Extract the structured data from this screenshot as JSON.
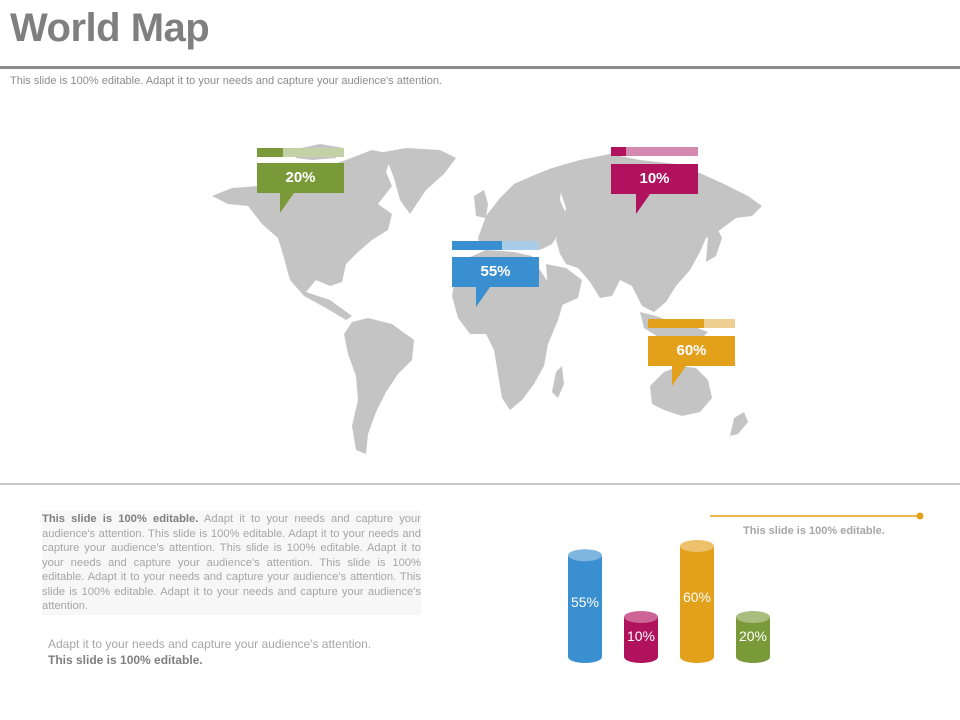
{
  "header": {
    "title": "World Map",
    "subtitle": "This slide is 100% editable. Adapt it to your needs and capture your audience's attention."
  },
  "map": {
    "land_color": "#c4c4c4",
    "callouts": [
      {
        "id": "north-america",
        "label": "20%",
        "value": 20,
        "color": "#7a9a3a",
        "light": "#c3d2a6"
      },
      {
        "id": "asia",
        "label": "10%",
        "value": 10,
        "color": "#b0125d",
        "light": "#d48ab0"
      },
      {
        "id": "africa",
        "label": "55%",
        "value": 55,
        "color": "#3a8fd0",
        "light": "#a9cde9"
      },
      {
        "id": "australia",
        "label": "60%",
        "value": 60,
        "color": "#e3a01b",
        "light": "#f0cf92"
      }
    ]
  },
  "text": {
    "para_bold": "This slide is 100% editable.",
    "para_body": "Adapt it to your needs and capture your audience's attention. This slide is 100% editable. Adapt it to your needs and capture your audience's attention. This slide is 100% editable. Adapt it to your needs and capture your audience's attention. This slide is 100% editable. Adapt it to your needs and capture your audience's attention. This slide is 100% editable. Adapt it to your needs and capture your audience's attention.",
    "para2_line1": "Adapt it to your needs and capture your audience's attention.",
    "para2_line2": "This slide is 100% editable.",
    "chart_note": "This slide is 100% editable."
  },
  "chart_data": {
    "type": "bar",
    "categories": [
      "",
      "",
      "",
      ""
    ],
    "values": [
      55,
      10,
      60,
      20
    ],
    "labels": [
      "55%",
      "10%",
      "60%",
      "20%"
    ],
    "colors": [
      "#3a8fd0",
      "#b0125d",
      "#e3a01b",
      "#7a9a3a"
    ],
    "title": "",
    "xlabel": "",
    "ylabel": ""
  }
}
